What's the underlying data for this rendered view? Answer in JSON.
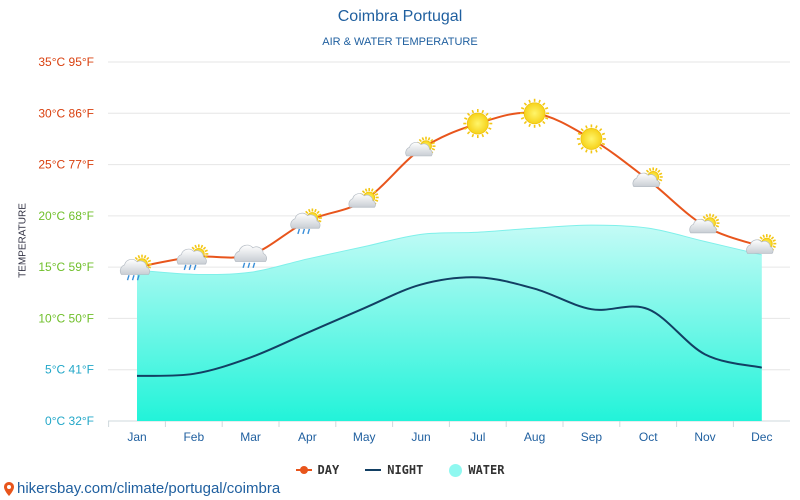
{
  "chart_data": {
    "type": "line",
    "title": "Coimbra Portugal",
    "subtitle": "AIR & WATER TEMPERATURE",
    "ylabel": "TEMPERATURE",
    "xlabel": "",
    "categories": [
      "Jan",
      "Feb",
      "Mar",
      "Apr",
      "May",
      "Jun",
      "Jul",
      "Aug",
      "Sep",
      "Oct",
      "Nov",
      "Dec"
    ],
    "ylim": [
      0,
      35
    ],
    "yticks": [
      {
        "value": 0,
        "label": "0°C 32°F"
      },
      {
        "value": 5,
        "label": "5°C 41°F"
      },
      {
        "value": 10,
        "label": "10°C 50°F"
      },
      {
        "value": 15,
        "label": "15°C 59°F"
      },
      {
        "value": 20,
        "label": "20°C 68°F"
      },
      {
        "value": 25,
        "label": "25°C 77°F"
      },
      {
        "value": 30,
        "label": "30°C 86°F"
      },
      {
        "value": 35,
        "label": "35°C 95°F"
      }
    ],
    "series": [
      {
        "name": "DAY",
        "type": "line",
        "color": "#e8551c",
        "values": [
          15,
          16,
          16.2,
          19.5,
          21.5,
          26.5,
          29,
          30,
          27.5,
          23.5,
          19,
          17
        ]
      },
      {
        "name": "NIGHT",
        "type": "line",
        "color": "#123f63",
        "values": [
          4.4,
          4.6,
          6.2,
          8.6,
          11,
          13.3,
          14,
          12.9,
          10.9,
          10.9,
          6.5,
          5.2
        ]
      },
      {
        "name": "WATER",
        "type": "area",
        "color": "#8ff8f0",
        "values": [
          14.7,
          14.3,
          14.5,
          15.8,
          17,
          18.2,
          18.4,
          18.8,
          19.1,
          18.8,
          17.5,
          16.2
        ]
      }
    ],
    "weather_icons": [
      "sun-cloud-rain",
      "sun-cloud-rain",
      "cloud-rain",
      "sun-cloud-rain",
      "sun-cloud",
      "sun-cloud",
      "sun",
      "sun",
      "sun",
      "sun-cloud",
      "sun-cloud",
      "sun-cloud"
    ],
    "grid": true,
    "legend_position": "bottom-center"
  },
  "legend": {
    "day": "DAY",
    "night": "NIGHT",
    "water": "WATER"
  },
  "source": {
    "text": "hikersbay.com/climate/portugal/coimbra"
  },
  "colors": {
    "tick_warm": "#d9400f",
    "tick_mid": "#6fbf2a",
    "tick_cool": "#22a7c8",
    "title": "#1f5f9f"
  }
}
